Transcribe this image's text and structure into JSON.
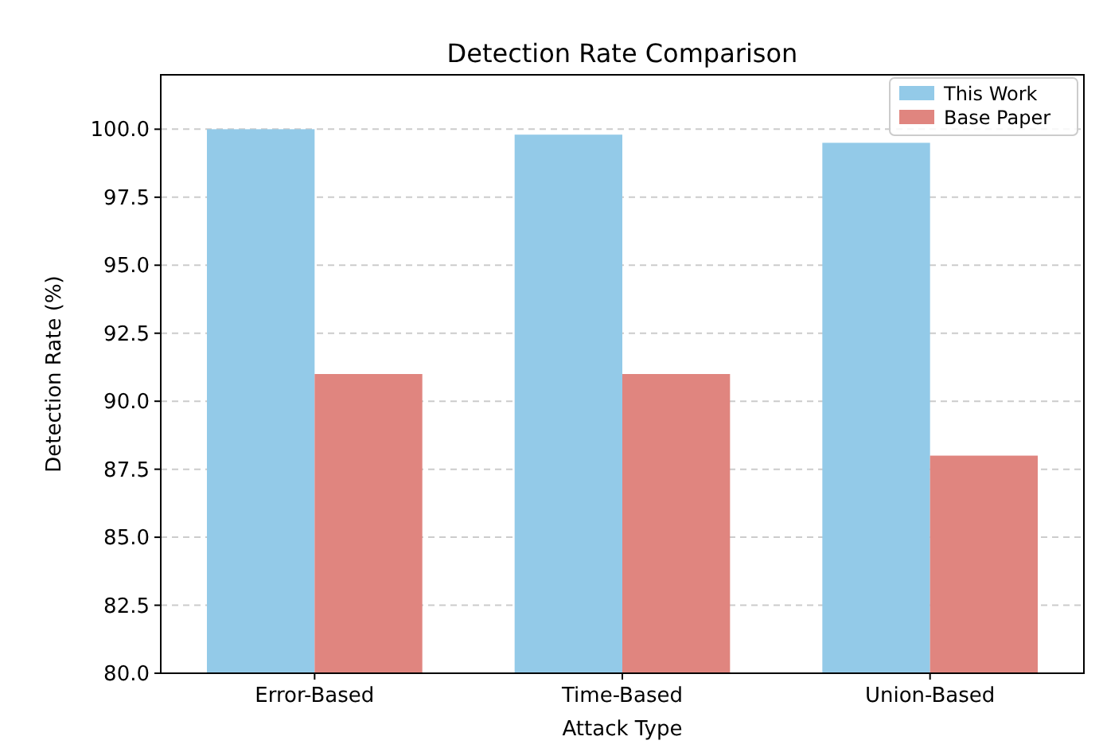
{
  "chart_data": {
    "type": "bar",
    "title": "Detection Rate Comparison",
    "xlabel": "Attack Type",
    "ylabel": "Detection Rate (%)",
    "categories": [
      "Error-Based",
      "Time-Based",
      "Union-Based"
    ],
    "series": [
      {
        "name": "This Work",
        "color": "#93cae8",
        "values": [
          100.0,
          99.8,
          99.5
        ]
      },
      {
        "name": "Base Paper",
        "color": "#e0857f",
        "values": [
          91,
          91,
          88
        ]
      }
    ],
    "ylim": [
      80,
      102
    ],
    "yticks": [
      {
        "value": 80,
        "label": "80.0"
      },
      {
        "value": 82.5,
        "label": "82.5"
      },
      {
        "value": 85,
        "label": "85.0"
      },
      {
        "value": 87.5,
        "label": "87.5"
      },
      {
        "value": 90,
        "label": "90.0"
      },
      {
        "value": 92.5,
        "label": "92.5"
      },
      {
        "value": 95,
        "label": "95.0"
      },
      {
        "value": 97.5,
        "label": "97.5"
      },
      {
        "value": 100,
        "label": "100.0"
      }
    ],
    "grid": "y",
    "legend": "top right"
  }
}
